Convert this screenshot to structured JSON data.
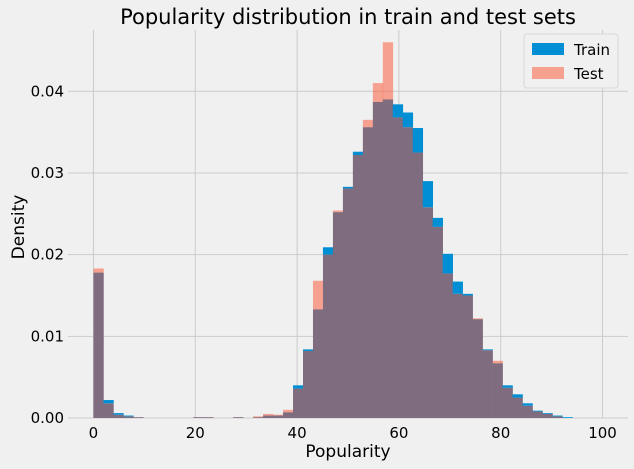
{
  "chart_data": {
    "type": "bar",
    "title": "Popularity distribution in train and test sets",
    "xlabel": "Popularity",
    "ylabel": "Density",
    "xlim": [
      -5,
      105
    ],
    "ylim": [
      0,
      0.0475
    ],
    "xticks": [
      0,
      20,
      40,
      60,
      80,
      100
    ],
    "yticks": [
      0.0,
      0.01,
      0.02,
      0.03,
      0.04
    ],
    "ytick_labels": [
      "0.00",
      "0.01",
      "0.02",
      "0.03",
      "0.04"
    ],
    "grid": true,
    "legend_position": "top-right",
    "bin_start": 0,
    "bin_width": 1.96,
    "overlap_color": "#7f6c7f",
    "series": [
      {
        "name": "Train",
        "color": "#008fd5",
        "values": [
          0.0178,
          0.0022,
          0.0006,
          0.0003,
          0.0001,
          0,
          0,
          0,
          0,
          0,
          0.0001,
          0.0001,
          0,
          0,
          0.0001,
          0,
          0.0001,
          0.0003,
          0.0003,
          0.0007,
          0.004,
          0.0084,
          0.0133,
          0.0209,
          0.0252,
          0.0283,
          0.0326,
          0.0356,
          0.0387,
          0.039,
          0.0384,
          0.0374,
          0.0355,
          0.029,
          0.0245,
          0.0201,
          0.0167,
          0.0152,
          0.0121,
          0.0084,
          0.0067,
          0.004,
          0.0029,
          0.0018,
          0.0009,
          0.0006,
          0.0003,
          0.0001,
          0,
          0,
          0
        ]
      },
      {
        "name": "Test",
        "color": "#fc4f30",
        "values": [
          0.0183,
          0.0018,
          0.0004,
          0.0002,
          0.0001,
          0,
          0,
          0,
          0,
          0,
          0.0001,
          0.0001,
          0,
          0,
          0.0001,
          0,
          0.0002,
          0.0005,
          0.0004,
          0.001,
          0.0036,
          0.0082,
          0.0168,
          0.02,
          0.0254,
          0.0281,
          0.0322,
          0.0365,
          0.041,
          0.046,
          0.0368,
          0.0356,
          0.0325,
          0.0258,
          0.0234,
          0.0177,
          0.0152,
          0.015,
          0.0122,
          0.0083,
          0.007,
          0.0037,
          0.0025,
          0.0015,
          0.0008,
          0.0005,
          0.0002,
          0,
          0,
          0,
          0
        ]
      }
    ]
  }
}
